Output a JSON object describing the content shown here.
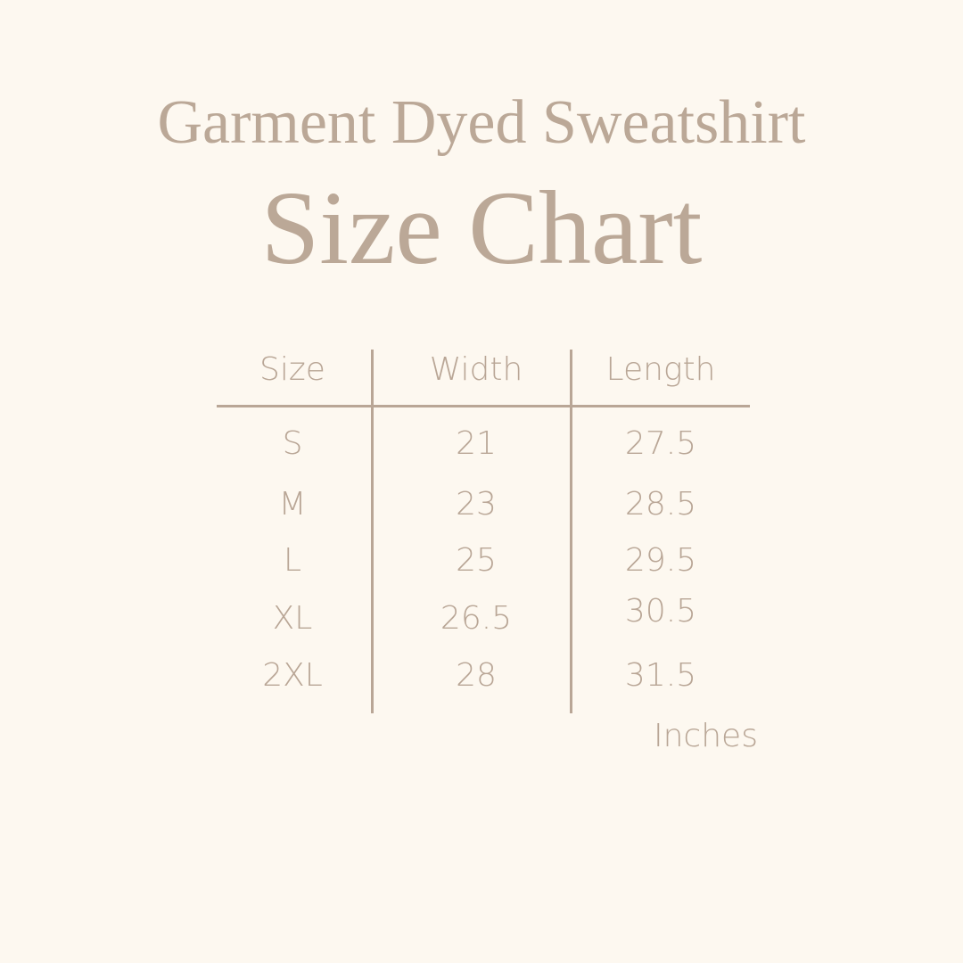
{
  "title": "Garment Dyed Sweatshirt",
  "subtitle": "Size Chart",
  "table": {
    "headers": [
      "Size",
      "Width",
      "Length"
    ],
    "rows": [
      [
        "S",
        "21",
        "27.5"
      ],
      [
        "M",
        "23",
        "28.5"
      ],
      [
        "L",
        "25",
        "29.5"
      ],
      [
        "XL",
        "26.5",
        "30.5"
      ],
      [
        "2XL",
        "28",
        "31.5"
      ]
    ]
  },
  "unit": "Inches",
  "colors": {
    "background": "#fdf8f0",
    "text": "#b9a696"
  }
}
